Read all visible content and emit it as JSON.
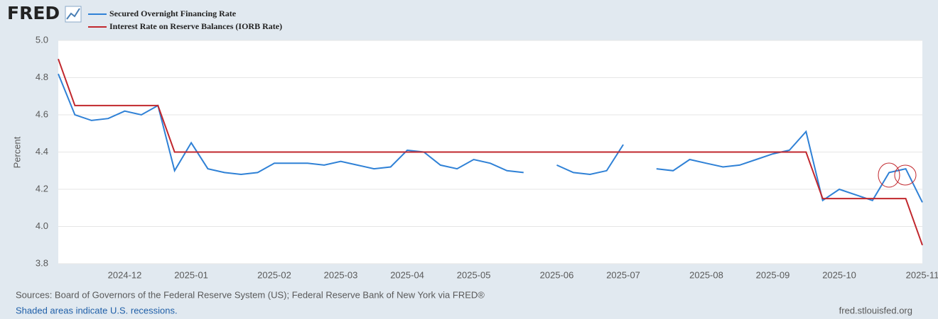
{
  "logo": "FRED",
  "footer": {
    "sources": "Sources: Board of Governors of the Federal Reserve System (US); Federal Reserve Bank of New York via FRED®",
    "note": "Shaded areas indicate U.S. recessions.",
    "site": "fred.stlouisfed.org"
  },
  "chart_data": {
    "type": "line",
    "y_label": "Percent",
    "categories": [
      null,
      null,
      null,
      null,
      "2024-12",
      null,
      null,
      null,
      "2025-01",
      null,
      null,
      null,
      null,
      "2025-02",
      null,
      null,
      null,
      "2025-03",
      null,
      null,
      null,
      "2025-04",
      null,
      null,
      null,
      "2025-05",
      null,
      null,
      null,
      null,
      "2025-06",
      null,
      null,
      null,
      "2025-07",
      null,
      null,
      null,
      null,
      "2025-08",
      null,
      null,
      null,
      "2025-09",
      null,
      null,
      null,
      "2025-10",
      null,
      null,
      null,
      null,
      "2025-11"
    ],
    "series": [
      {
        "name": "Secured Overnight Financing Rate",
        "color": "#2f81d6",
        "values": [
          4.82,
          4.6,
          4.57,
          4.58,
          4.62,
          4.6,
          4.65,
          4.3,
          4.45,
          4.31,
          4.29,
          4.28,
          4.29,
          4.34,
          4.34,
          4.34,
          4.33,
          4.35,
          4.33,
          4.31,
          4.32,
          4.41,
          4.4,
          4.33,
          4.31,
          4.36,
          4.34,
          4.3,
          4.29,
          null,
          4.33,
          4.29,
          4.28,
          4.3,
          4.44,
          null,
          4.31,
          4.3,
          4.36,
          4.34,
          4.32,
          4.33,
          4.36,
          4.39,
          4.41,
          4.51,
          4.14,
          4.2,
          4.17,
          4.14,
          4.29,
          4.31,
          4.13
        ]
      },
      {
        "name": "Interest Rate on Reserve Balances (IORB Rate)",
        "color": "#c1272d",
        "values": [
          4.9,
          4.65,
          4.65,
          4.65,
          4.65,
          4.65,
          4.65,
          4.4,
          4.4,
          4.4,
          4.4,
          4.4,
          4.4,
          4.4,
          4.4,
          4.4,
          4.4,
          4.4,
          4.4,
          4.4,
          4.4,
          4.4,
          4.4,
          4.4,
          4.4,
          4.4,
          4.4,
          4.4,
          4.4,
          4.4,
          4.4,
          4.4,
          4.4,
          4.4,
          4.4,
          4.4,
          4.4,
          4.4,
          4.4,
          4.4,
          4.4,
          4.4,
          4.4,
          4.4,
          4.4,
          4.4,
          4.15,
          4.15,
          4.15,
          4.15,
          4.15,
          4.15,
          3.9
        ]
      }
    ],
    "ylim": [
      3.8,
      5.0
    ],
    "yticks": [
      3.8,
      {
        "value": 4,
        "label": "4.0"
      },
      4.2,
      4.4,
      4.6,
      4.8,
      {
        "value": 5,
        "label": "5.0"
      }
    ],
    "grid": true
  }
}
